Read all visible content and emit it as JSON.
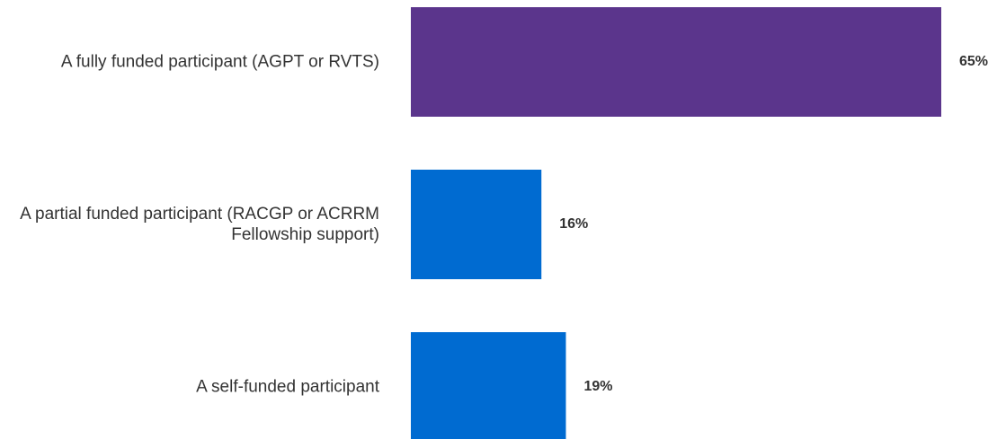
{
  "chart_data": {
    "type": "bar",
    "orientation": "horizontal",
    "categories": [
      "A fully funded participant (AGPT or RVTS)",
      "A partial funded participant (RACGP or ACRRM Fellowship support)",
      "A self-funded participant"
    ],
    "values": [
      65,
      16,
      19
    ],
    "value_labels": [
      "65%",
      "16%",
      "19%"
    ],
    "colors": [
      "#5b358c",
      "#006bd1",
      "#006bd1"
    ]
  }
}
